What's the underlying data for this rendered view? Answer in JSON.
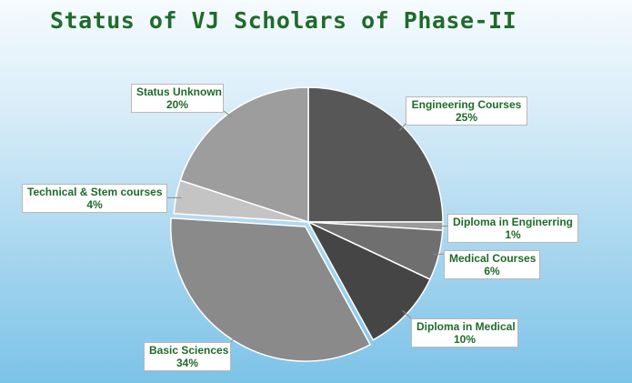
{
  "chart_data": {
    "type": "pie",
    "title": "Status of VJ Scholars of Phase-II",
    "slices": [
      {
        "label": "Engineering Courses",
        "value": 25,
        "display": "25%",
        "color": "#575757"
      },
      {
        "label": "Diploma in Enginerring",
        "value": 1,
        "display": "1%",
        "color": "#9b9b9b"
      },
      {
        "label": "Medical Courses",
        "value": 6,
        "display": "6%",
        "color": "#6f6f6f"
      },
      {
        "label": "Diploma in Medical",
        "value": 10,
        "display": "10%",
        "color": "#454545"
      },
      {
        "label": "Basic Sciences",
        "value": 34,
        "display": "34%",
        "color": "#8a8a8a"
      },
      {
        "label": "Technical & Stem courses",
        "value": 4,
        "display": "4%",
        "color": "#c4c4c4"
      },
      {
        "label": "Status Unknown",
        "value": 20,
        "display": "20%",
        "color": "#9d9d9d"
      }
    ]
  }
}
